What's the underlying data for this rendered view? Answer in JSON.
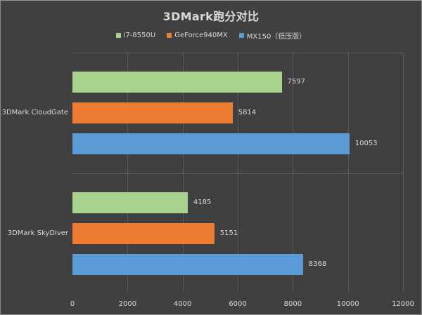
{
  "chart_data": {
    "type": "bar",
    "orientation": "horizontal",
    "title": "3DMark跑分对比",
    "xlabel": "",
    "ylabel": "",
    "categories": [
      "3DMark CloudGate",
      "3DMark SkyDiver"
    ],
    "series": [
      {
        "name": "i7-8550U",
        "color": "#a9d18e",
        "values": [
          7597,
          4185
        ]
      },
      {
        "name": "GeForce940MX",
        "color": "#ed7d31",
        "values": [
          5814,
          5151
        ]
      },
      {
        "name": "MX150（低压版）",
        "color": "#5b9bd5",
        "values": [
          10053,
          8368
        ]
      }
    ],
    "xlim": [
      0,
      12000
    ],
    "xticks": [
      "0",
      "2000",
      "4000",
      "6000",
      "8000",
      "10000",
      "12000"
    ],
    "grid": true,
    "legend_position": "top",
    "data_labels": true
  },
  "colors": {
    "background": "#404040",
    "text": "#d9d9d9",
    "grid": "#595959"
  }
}
